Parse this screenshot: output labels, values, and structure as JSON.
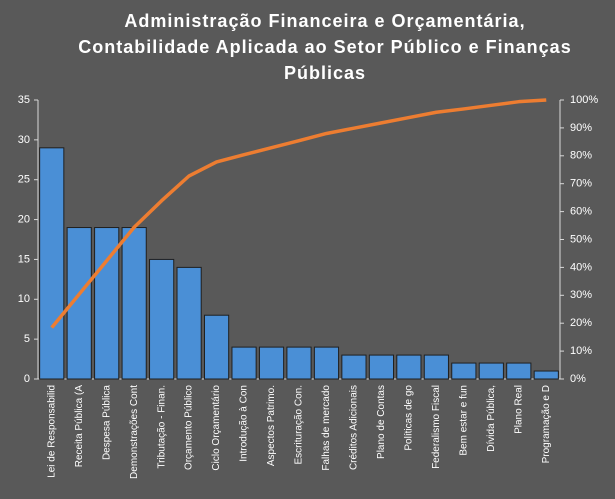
{
  "chart_data": {
    "type": "pareto",
    "title": [
      "Administração Financeira e Orçamentária,",
      "Contabilidade Aplicada ao Setor Público e Finanças",
      "Públicas"
    ],
    "categories": [
      "Lei de Responsabilid",
      "Receita Pública (A",
      "Despesa Pública",
      "Demonstrações Cont",
      "Tributação - Finan.",
      "Orçamento Público",
      "Ciclo Orçamentário",
      "Introdução à Con",
      "Aspectos Patrimo.",
      "Escrituração Con.",
      "Falhas de mercado",
      "Créditos Adicionais",
      "Plano de Contas",
      "Políticas de go",
      "Federalismo Fiscal",
      "Bem estar e fun",
      "Dívida Pública,",
      "Plano Real",
      "Programação e D"
    ],
    "series": [
      {
        "type": "bar",
        "color": "#4a8fd6",
        "values": [
          29,
          19,
          19,
          19,
          15,
          14,
          8,
          4,
          4,
          4,
          4,
          3,
          3,
          3,
          3,
          2,
          2,
          2,
          1
        ]
      },
      {
        "type": "line",
        "axis": "y2",
        "color": "#ed7d31",
        "values": [
          18.4,
          30.4,
          42.4,
          54.4,
          63.9,
          72.8,
          77.8,
          80.4,
          82.9,
          85.4,
          88.0,
          89.9,
          91.8,
          93.7,
          95.6,
          96.8,
          98.1,
          99.4,
          100
        ]
      }
    ],
    "ylim": [
      0,
      35
    ],
    "yticks": [
      0,
      5,
      10,
      15,
      20,
      25,
      30,
      35
    ],
    "y2lim": [
      0,
      100
    ],
    "y2ticks": [
      {
        "value": 0,
        "label": "0%"
      },
      {
        "value": 10,
        "label": "10%"
      },
      {
        "value": 20,
        "label": "20%"
      },
      {
        "value": 30,
        "label": "30%"
      },
      {
        "value": 40,
        "label": "40%"
      },
      {
        "value": 50,
        "label": "50%"
      },
      {
        "value": 60,
        "label": "60%"
      },
      {
        "value": 70,
        "label": "70%"
      },
      {
        "value": 80,
        "label": "80%"
      },
      {
        "value": 90,
        "label": "90%"
      },
      {
        "value": 100,
        "label": "100%"
      }
    ],
    "grid": false
  }
}
